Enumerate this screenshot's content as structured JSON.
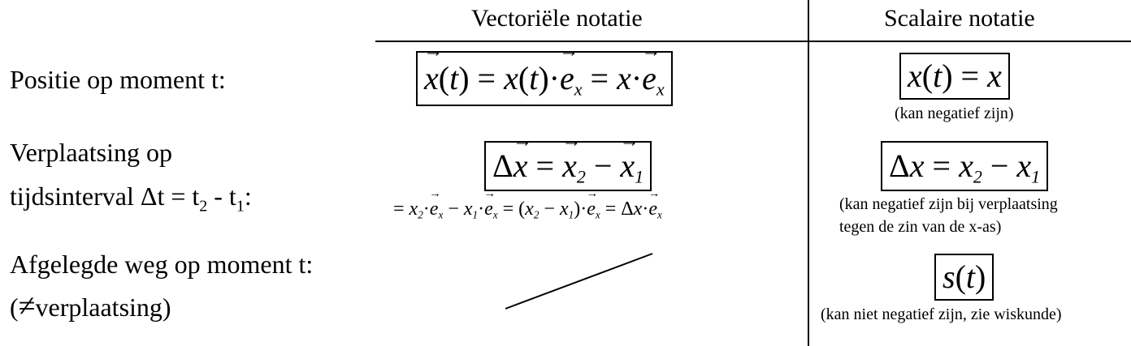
{
  "header": {
    "vector_title": "Vectoriële notatie",
    "scalar_title": "Scalaire notatie"
  },
  "rows": {
    "position": {
      "label": "Positie op moment t:",
      "note": "(kan negatief zijn)"
    },
    "displacement": {
      "label_line1": "Verplaatsing op",
      "label_line2_prefix": "tijdsinterval Δt = t",
      "label_line2_mid": " - t",
      "label_line2_suffix": ":",
      "sub2": "2",
      "sub1": "1",
      "note_line1": "(kan negatief zijn bij verplaatsing",
      "note_line2": "tegen de zin van de x-as)"
    },
    "distance": {
      "label_line1": "Afgelegde weg op moment t:",
      "label_line2_symbol": "≠",
      "label_line2_text": "verplaatsing)",
      "label_line2_open": "(",
      "note": "(kan niet negatief zijn, zie wiskunde)"
    }
  }
}
